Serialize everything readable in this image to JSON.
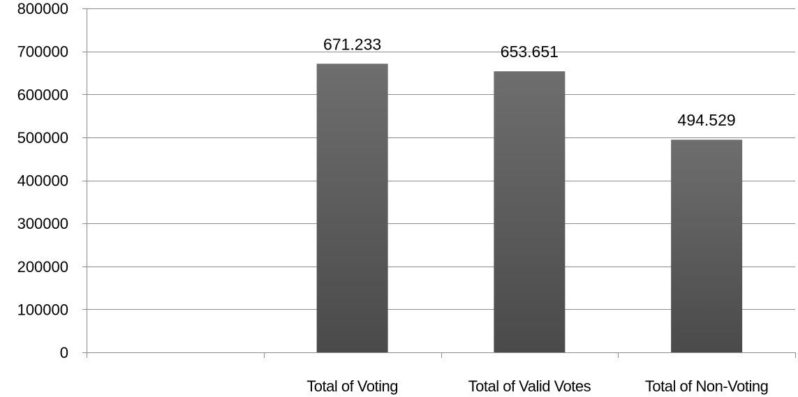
{
  "chart_data": {
    "type": "bar",
    "title": "",
    "xlabel": "",
    "ylabel": "",
    "categories": [
      "",
      "Total of Voting",
      "Total of Valid Votes",
      "Total of Non-Voting"
    ],
    "values": [
      null,
      671233,
      653651,
      494529
    ],
    "data_labels": [
      "",
      "671.233",
      "653.651",
      "494.529"
    ],
    "ylim": [
      0,
      800000
    ],
    "yticks": [
      0,
      100000,
      200000,
      300000,
      400000,
      500000,
      600000,
      700000,
      800000
    ],
    "ytick_labels": [
      "0",
      "100000",
      "200000",
      "300000",
      "400000",
      "500000",
      "600000",
      "700000",
      "800000"
    ],
    "grid": true,
    "legend": "none",
    "bar_color_top": "#6e6e6e",
    "bar_color_bottom": "#4a4a4a",
    "grid_color": "#8c8c8c"
  }
}
